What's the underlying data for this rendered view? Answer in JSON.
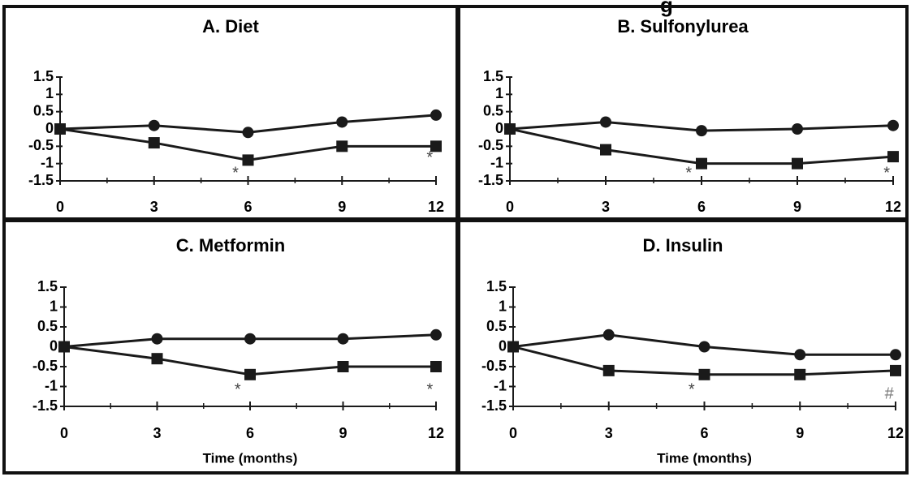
{
  "figure": {
    "top_fragment": "g",
    "colors": {
      "frame": "#111111",
      "series": "#1a1a1a",
      "marker_gray": "#777777"
    }
  },
  "chart_data": [
    {
      "type": "line",
      "title": "A. Diet",
      "xlabel": "",
      "ylabel": "",
      "x": [
        0,
        3,
        6,
        9,
        12
      ],
      "xticks": [
        "0",
        "3",
        "6",
        "9",
        "12"
      ],
      "yticks": [
        "1.5",
        "1",
        "0.5",
        "0",
        "-0.5",
        "-1",
        "-1.5"
      ],
      "ylim": [
        -1.5,
        1.5
      ],
      "series": [
        {
          "marker": "circle",
          "values": [
            0,
            0.1,
            -0.1,
            0.2,
            0.4
          ]
        },
        {
          "marker": "square",
          "values": [
            0,
            -0.4,
            -0.9,
            -0.5,
            -0.5
          ]
        }
      ],
      "annotations": [
        {
          "text": "*",
          "x": 5.6,
          "y": -1.3
        },
        {
          "text": "*",
          "x": 11.8,
          "y": -0.85
        }
      ]
    },
    {
      "type": "line",
      "title": "B. Sulfonylurea",
      "xlabel": "",
      "ylabel": "",
      "x": [
        0,
        3,
        6,
        9,
        12
      ],
      "xticks": [
        "0",
        "3",
        "6",
        "9",
        "12"
      ],
      "yticks": [
        "1.5",
        "1",
        "0.5",
        "0",
        "-0.5",
        "-1",
        "-1.5"
      ],
      "ylim": [
        -1.5,
        1.5
      ],
      "series": [
        {
          "marker": "circle",
          "values": [
            0,
            0.2,
            -0.05,
            0,
            0.1
          ]
        },
        {
          "marker": "square",
          "values": [
            0,
            -0.6,
            -1.0,
            -1.0,
            -0.8
          ]
        }
      ],
      "annotations": [
        {
          "text": "*",
          "x": 5.6,
          "y": -1.3
        },
        {
          "text": "*",
          "x": 11.8,
          "y": -1.3
        }
      ]
    },
    {
      "type": "line",
      "title": "C. Metformin",
      "xlabel": "Time (months)",
      "ylabel": "",
      "x": [
        0,
        3,
        6,
        9,
        12
      ],
      "xticks": [
        "0",
        "3",
        "6",
        "9",
        "12"
      ],
      "yticks": [
        "1.5",
        "1",
        "0.5",
        "0",
        "-0.5",
        "-1",
        "-1.5"
      ],
      "ylim": [
        -1.5,
        1.5
      ],
      "series": [
        {
          "marker": "circle",
          "values": [
            0,
            0.2,
            0.2,
            0.2,
            0.3
          ]
        },
        {
          "marker": "square",
          "values": [
            0,
            -0.3,
            -0.7,
            -0.5,
            -0.5
          ]
        }
      ],
      "annotations": [
        {
          "text": "*",
          "x": 5.6,
          "y": -1.1
        },
        {
          "text": "*",
          "x": 11.8,
          "y": -1.1
        }
      ]
    },
    {
      "type": "line",
      "title": "D. Insulin",
      "xlabel": "Time (months)",
      "ylabel": "",
      "x": [
        0,
        3,
        6,
        9,
        12
      ],
      "xticks": [
        "0",
        "3",
        "6",
        "9",
        "12"
      ],
      "yticks": [
        "1.5",
        "1",
        "0.5",
        "0",
        "-0.5",
        "-1",
        "-1.5"
      ],
      "ylim": [
        -1.5,
        1.5
      ],
      "series": [
        {
          "marker": "circle",
          "values": [
            0,
            0.3,
            0,
            -0.2,
            -0.2
          ]
        },
        {
          "marker": "square",
          "values": [
            0,
            -0.6,
            -0.7,
            -0.7,
            -0.6
          ]
        }
      ],
      "annotations": [
        {
          "text": "*",
          "x": 5.6,
          "y": -1.1
        },
        {
          "text": "#",
          "x": 11.8,
          "y": -1.2
        }
      ]
    }
  ]
}
